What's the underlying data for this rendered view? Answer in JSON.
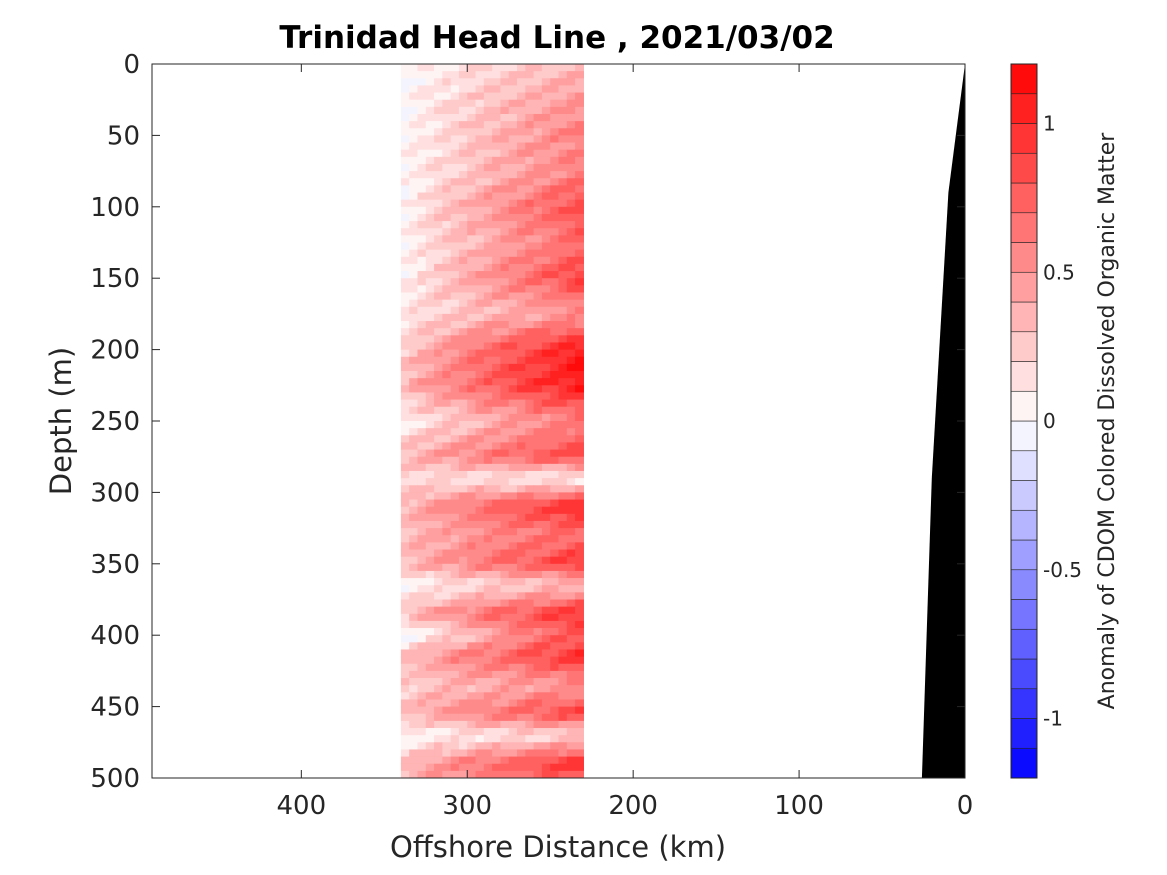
{
  "chart_data": {
    "type": "heatmap",
    "title": "Trinidad Head Line , 2021/03/02",
    "xlabel": "Offshore Distance (km)",
    "ylabel": "Depth (m)",
    "colorbar_label": "Anomaly of CDOM Colored Dissolved Organic Matter",
    "x_axis_reversed": true,
    "y_axis_reversed": true,
    "xlim": [
      490,
      0
    ],
    "ylim": [
      0,
      500
    ],
    "x_ticks": [
      400,
      300,
      200,
      100,
      0
    ],
    "x_tick_labels": [
      "400",
      "300",
      "200",
      "100",
      "0"
    ],
    "y_ticks": [
      0,
      50,
      100,
      150,
      200,
      250,
      300,
      350,
      400,
      450,
      500
    ],
    "y_tick_labels": [
      "0",
      "50",
      "100",
      "150",
      "200",
      "250",
      "300",
      "350",
      "400",
      "450",
      "500"
    ],
    "colorbar": {
      "range": [
        -1.2,
        1.2
      ],
      "levels": 24,
      "ticks": [
        1,
        0.5,
        0,
        -0.5,
        -1
      ],
      "tick_labels": [
        "1",
        "0.5",
        "0",
        "-0.5",
        "-1"
      ]
    },
    "data_x_extent_km": [
      230,
      340
    ],
    "depth_profile": [
      [
        0,
        0,
        0.3
      ],
      [
        25,
        0,
        0.5
      ],
      [
        50,
        0,
        0.6
      ],
      [
        75,
        0,
        0.6
      ],
      [
        100,
        0,
        0.85
      ],
      [
        125,
        0,
        0.7
      ],
      [
        150,
        0,
        0.9
      ],
      [
        175,
        0.1,
        0.5
      ],
      [
        200,
        0.2,
        1.1
      ],
      [
        225,
        0.3,
        1.1
      ],
      [
        250,
        0.05,
        0.6
      ],
      [
        275,
        0.3,
        0.9
      ],
      [
        290,
        0.2,
        0.05
      ],
      [
        310,
        0.3,
        1.05
      ],
      [
        330,
        0.3,
        0.7
      ],
      [
        350,
        0.3,
        0.95
      ],
      [
        365,
        0.0,
        0.3
      ],
      [
        385,
        0.3,
        1.0
      ],
      [
        400,
        -0.1,
        0.8
      ],
      [
        415,
        0.3,
        1.0
      ],
      [
        435,
        0.2,
        0.5
      ],
      [
        455,
        0.3,
        0.9
      ],
      [
        470,
        0.0,
        0.2
      ],
      [
        490,
        0.3,
        1.0
      ],
      [
        500,
        0.3,
        0.8
      ]
    ],
    "bathymetry": [
      [
        0,
        0
      ],
      [
        10,
        90
      ],
      [
        20,
        290
      ],
      [
        26,
        500
      ]
    ],
    "colors": {
      "land": "#000000",
      "positive": "#ff0000",
      "negative": "#0000ff",
      "zero": "#ffffff"
    }
  }
}
